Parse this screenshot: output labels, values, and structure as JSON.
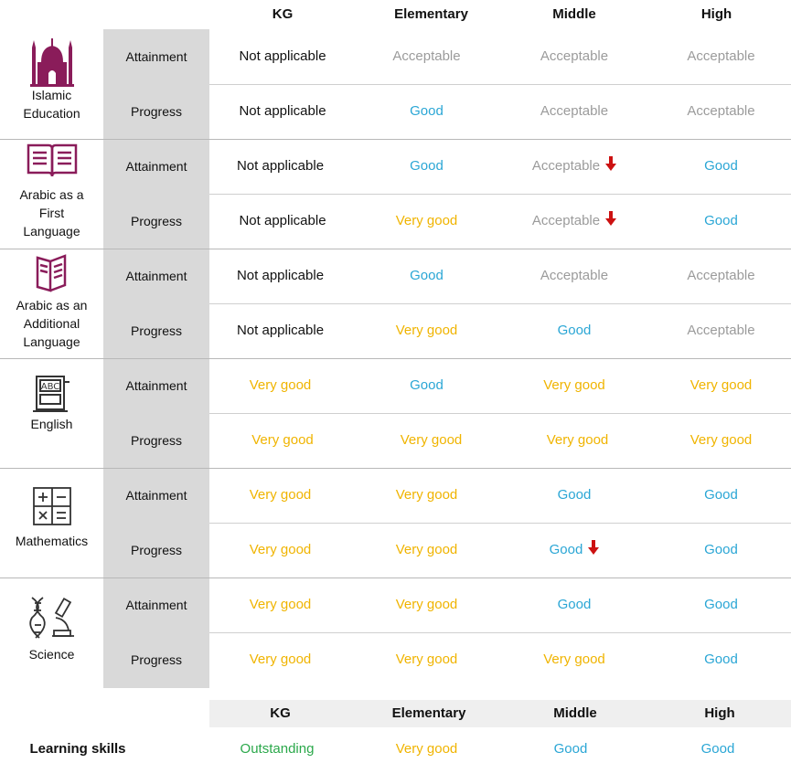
{
  "header": {
    "kg": "KG",
    "elementary": "Elementary",
    "middle": "Middle",
    "high": "High"
  },
  "rows": [
    {
      "subject": "Islamic Education",
      "icon": "mosque-icon",
      "attainment_label": "Attainment",
      "progress_label": "Progress",
      "attainment": [
        "Not applicable",
        "Acceptable",
        "Acceptable",
        "Acceptable"
      ],
      "progress": [
        "Not applicable",
        "Good",
        "Acceptable",
        "Acceptable"
      ]
    },
    {
      "subject": "Arabic as a First Language",
      "icon": "open-book-icon",
      "attainment_label": "Attainment",
      "progress_label": "Progress",
      "attainment": [
        "Not applicable",
        "Good",
        "Acceptable",
        "Good"
      ],
      "progress": [
        "Not applicable",
        "Very good",
        "Acceptable",
        "Good"
      ]
    },
    {
      "subject": "Arabic as an Additional Language",
      "icon": "book-icon",
      "attainment_label": "Attainment",
      "progress_label": "Progress",
      "attainment": [
        "Not applicable",
        "Good",
        "Acceptable",
        "Acceptable"
      ],
      "progress": [
        "Not applicable",
        "Very good",
        "Good",
        "Acceptable"
      ]
    },
    {
      "subject": "English",
      "icon": "abc-book-icon",
      "attainment_label": "Attainment",
      "progress_label": "Progress",
      "attainment": [
        "Very good",
        "Good",
        "Very good",
        "Very good"
      ],
      "progress": [
        "Very good",
        "Very good",
        "Very good",
        "Very good"
      ]
    },
    {
      "subject": "Mathematics",
      "icon": "calculator-icon",
      "attainment_label": "Attainment",
      "progress_label": "Progress",
      "attainment": [
        "Very good",
        "Very good",
        "Good",
        "Good"
      ],
      "progress": [
        "Very good",
        "Very good",
        "Good",
        "Good"
      ]
    },
    {
      "subject": "Science",
      "icon": "microscope-dna-icon",
      "attainment_label": "Attainment",
      "progress_label": "Progress",
      "attainment": [
        "Very good",
        "Very good",
        "Good",
        "Good"
      ],
      "progress": [
        "Very good",
        "Very good",
        "Very good",
        "Good"
      ]
    }
  ],
  "learning_skills": {
    "header": {
      "kg": "KG",
      "elementary": "Elementary",
      "middle": "Middle",
      "high": "High"
    },
    "label": "Learning skills",
    "values": [
      "Outstanding",
      "Very good",
      "Good",
      "Good"
    ]
  },
  "colors": {
    "not_applicable": "#111111",
    "acceptable": "#9b9b9b",
    "good": "#2aa6d5",
    "very_good": "#f0b400",
    "outstanding": "#2aa84a",
    "down_arrow": "#cc1111",
    "icon": "#8a1c5a"
  },
  "down_arrow_icon": "down-arrow-icon"
}
